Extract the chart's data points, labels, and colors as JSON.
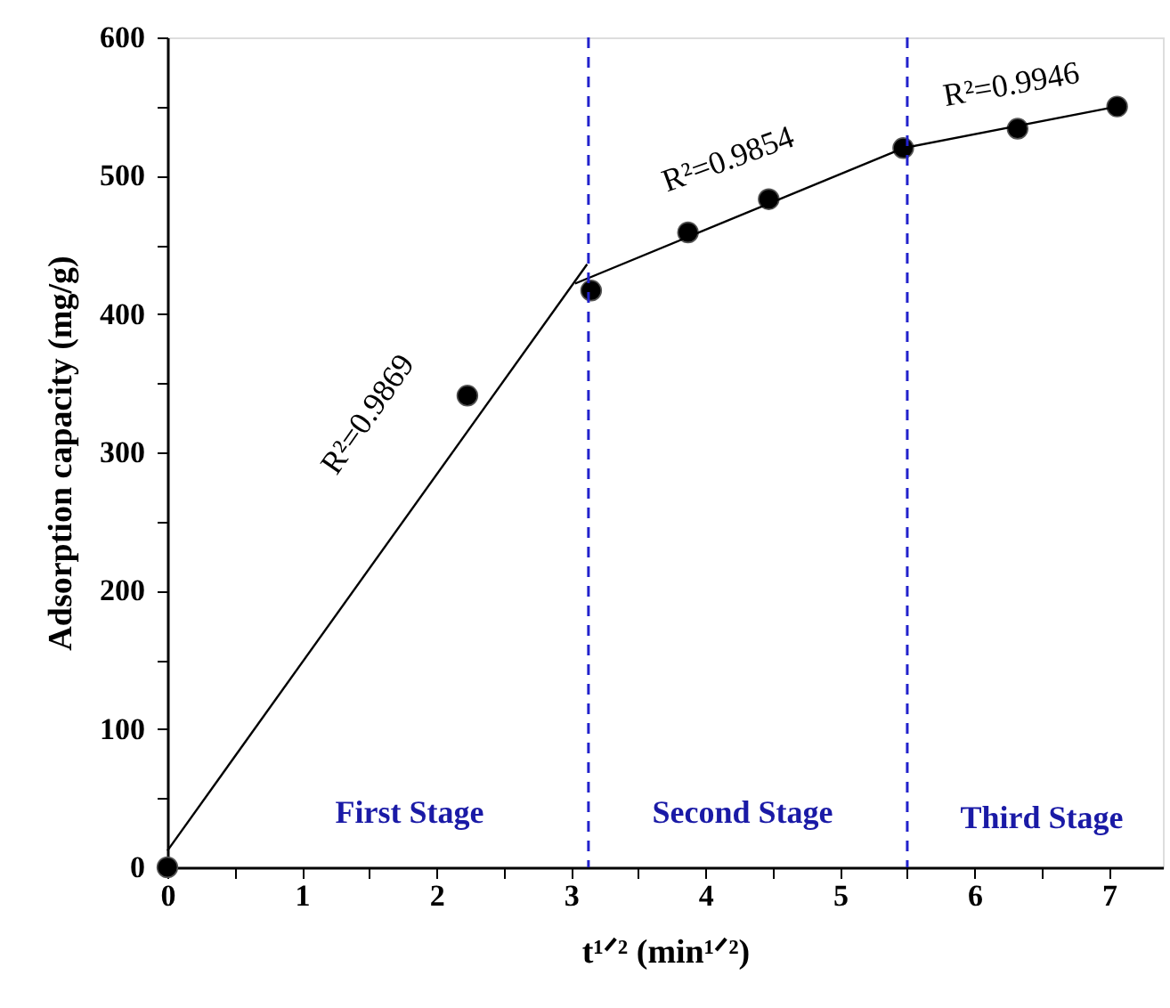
{
  "chart_data": {
    "type": "scatter",
    "xlabel": "t¹ᐟ² (min¹ᐟ²)",
    "ylabel": "Adsorption capacity (mg/g)",
    "xlim": [
      0,
      7.4
    ],
    "ylim": [
      0,
      600
    ],
    "xticks": [
      0,
      {
        "value": 0.5,
        "label": null
      },
      1,
      {
        "value": 1.5,
        "label": null
      },
      2,
      {
        "value": 2.5,
        "label": null
      },
      3,
      {
        "value": 3.5,
        "label": null
      },
      4,
      {
        "value": 4.5,
        "label": null
      },
      5,
      {
        "value": 5.5,
        "label": null
      },
      6,
      {
        "value": 6.5,
        "label": null
      },
      7
    ],
    "yticks": [
      0,
      {
        "value": 50,
        "label": null
      },
      100,
      {
        "value": 150,
        "label": null
      },
      200,
      {
        "value": 250,
        "label": null
      },
      300,
      {
        "value": 350,
        "label": null
      },
      400,
      {
        "value": 450,
        "label": null
      },
      500,
      {
        "value": 550,
        "label": null
      },
      600
    ],
    "grid": false,
    "marker": "circle",
    "series": [
      {
        "color": "#000000",
        "x": [
          0,
          2.23,
          3.15,
          3.87,
          4.47,
          5.47,
          6.32,
          7.06
        ],
        "values": [
          0,
          341,
          417,
          459,
          483,
          520,
          534,
          550
        ]
      },
      {
        "type": "line",
        "marker": "none",
        "line_style": "solid",
        "color": "#000000",
        "x": [
          0,
          3.12
        ],
        "values": [
          12,
          436
        ]
      },
      {
        "type": "line",
        "marker": "none",
        "line_style": "solid",
        "color": "#000000",
        "x": [
          3.03,
          5.47
        ],
        "values": [
          422,
          520
        ]
      },
      {
        "type": "line",
        "marker": "none",
        "line_style": "solid",
        "color": "#000000",
        "x": [
          5.47,
          7.06
        ],
        "values": [
          520,
          550
        ]
      }
    ],
    "ref_lines": [
      {
        "axis": "x",
        "value": 3.13,
        "color": "#2222cc",
        "line_style": "dashed"
      },
      {
        "axis": "x",
        "value": 5.5,
        "color": "#2222cc",
        "line_style": "dashed"
      }
    ],
    "annotations": [
      "R²=0.9869",
      "R²=0.9854",
      "R²=0.9946",
      "First Stage",
      "Second Stage",
      "Third Stage"
    ]
  }
}
